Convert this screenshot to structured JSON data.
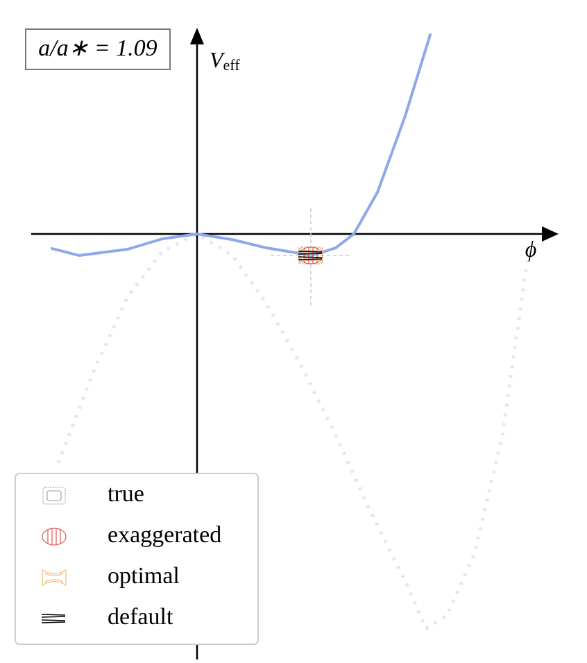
{
  "chart_data": {
    "type": "line",
    "annotation": "a/a∗ = 1.09",
    "ylabel": "V",
    "ylabel_sub": "eff",
    "xlabel": "ϕ",
    "xlim": [
      -2.39,
      5.21
    ],
    "ylim": [
      -6.13,
      2.97
    ],
    "series": [
      {
        "color": "#e4e4f6",
        "style": "dotted",
        "x": [
          -2.0,
          -1.5,
          -1.0,
          -0.5,
          0,
          0.5,
          1.0,
          1.5,
          2.0,
          2.5,
          3.0,
          3.3,
          3.6,
          4.0,
          4.4,
          4.76
        ],
        "values": [
          -3.3,
          -2.0,
          -0.9,
          -0.25,
          0,
          -0.3,
          -1.0,
          -1.9,
          -2.9,
          -4.0,
          -5.0,
          -5.68,
          -5.5,
          -4.6,
          -2.9,
          -0.38
        ]
      },
      {
        "color": "#8fa8ea",
        "style": "solid",
        "x": [
          -2.09,
          -1.7,
          -1.0,
          -0.5,
          0,
          0.5,
          1.0,
          1.66,
          2.0,
          2.26,
          2.6,
          3.0,
          3.36
        ],
        "values": [
          -0.21,
          -0.31,
          -0.22,
          -0.07,
          0,
          -0.08,
          -0.2,
          -0.31,
          -0.2,
          0,
          0.6,
          1.7,
          2.87
        ]
      }
    ],
    "marker_point": {
      "x": 1.64,
      "y": -0.31
    },
    "markers": [
      {
        "name": "true",
        "color": "#aaaaaa"
      },
      {
        "name": "exaggerated",
        "color": "#e06060"
      },
      {
        "name": "optimal",
        "color": "#f5c07a"
      },
      {
        "name": "default",
        "color": "#000000"
      }
    ]
  }
}
